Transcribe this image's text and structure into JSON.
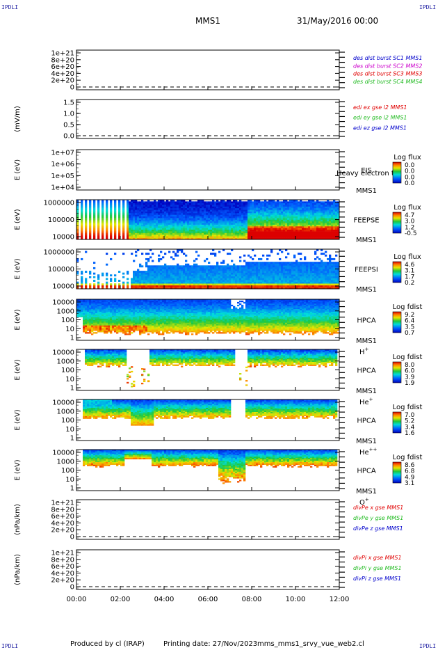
{
  "header": {
    "corner_tl": "IPDLI",
    "corner_tr": "IPDLI",
    "corner_bl": "IPDLI",
    "corner_br": "IPDLI",
    "spacecraft": "MMS1",
    "date_time": "31/May/2016 00:00"
  },
  "footer": {
    "produced_by": "Produced by cl (IRAP)",
    "printing_date": "Printing date: 27/Nov/2023",
    "script_name": "mms_mms1_srvy_vue_web2.cl"
  },
  "colors": {
    "red": "#e00000",
    "magenta": "#cc00cc",
    "green": "#22bb22",
    "blue": "#0000cc",
    "axis": "#000000"
  },
  "chart_data": [
    {
      "type": "line",
      "ylabel": "",
      "yticks": [
        "0",
        "2e+20",
        "4e+20",
        "6e+20",
        "8e+20",
        "1e+21"
      ],
      "legend": [
        {
          "name": "des dist burst SC1 MMS1",
          "color": "#0000cc"
        },
        {
          "name": "des dist burst SC2 MMS2",
          "color": "#cc00cc"
        },
        {
          "name": "des dist burst SC3 MMS3",
          "color": "#e00000"
        },
        {
          "name": "des dist burst SC4 MMS4",
          "color": "#22bb22"
        }
      ],
      "zero_line": true
    },
    {
      "type": "line",
      "ylabel": "(mV/m)",
      "yticks": [
        "0.0",
        "0.5",
        "1.0",
        "1.5"
      ],
      "legend": [
        {
          "name": "edi ex gse l2 MMS1",
          "color": "#e00000"
        },
        {
          "name": "edi ey gse l2 MMS1",
          "color": "#22bb22"
        },
        {
          "name": "edi ez gse l2 MMS1",
          "color": "#0000cc"
        }
      ],
      "zero_line": true
    },
    {
      "type": "heatmap",
      "ylabel": "E (eV)",
      "yticks": [
        "1e+04",
        "1e+05",
        "1e+06",
        "1e+07"
      ],
      "instrument": "EIS",
      "instrument_extra": "Heavy electron to",
      "spacecraft": "MMS1",
      "colorbar_title": "Log flux",
      "colorbar_ticks": [
        "0.0",
        "0.0",
        "0.0",
        "0.0"
      ],
      "spectrogram": "none"
    },
    {
      "type": "heatmap",
      "ylabel": "E (eV)",
      "yticks": [
        "10000",
        "100000",
        "1000000"
      ],
      "instrument": "FEEPSE",
      "spacecraft": "MMS1",
      "colorbar_title": "Log flux",
      "colorbar_ticks": [
        "4.7",
        "3.0",
        "1.2",
        "-0.5"
      ],
      "spectrogram": "feepse"
    },
    {
      "type": "heatmap",
      "ylabel": "E (eV)",
      "yticks": [
        "10000",
        "100000",
        "1000000"
      ],
      "instrument": "FEEPSI",
      "spacecraft": "MMS1",
      "colorbar_title": "Log flux",
      "colorbar_ticks": [
        "4.6",
        "3.1",
        "1.7",
        "0.2"
      ],
      "spectrogram": "feepsi"
    },
    {
      "type": "heatmap",
      "ylabel": "E (eV)",
      "yticks": [
        "1",
        "10",
        "100",
        "1000",
        "10000"
      ],
      "instrument": "HPCA",
      "spacecraft": "MMS1",
      "species_base": "H",
      "species_sup": "+",
      "colorbar_title": "Log fdist",
      "colorbar_ticks": [
        "9.2",
        "6.4",
        "3.5",
        "0.7"
      ],
      "spectrogram": "hplus"
    },
    {
      "type": "heatmap",
      "ylabel": "E (eV)",
      "yticks": [
        "1",
        "10",
        "100",
        "1000",
        "10000"
      ],
      "instrument": "HPCA",
      "spacecraft": "MMS1",
      "species_base": "He",
      "species_sup": "+",
      "colorbar_title": "Log fdist",
      "colorbar_ticks": [
        "8.0",
        "6.0",
        "3.9",
        "1.9"
      ],
      "spectrogram": "heplus"
    },
    {
      "type": "heatmap",
      "ylabel": "E (eV)",
      "yticks": [
        "1",
        "10",
        "100",
        "1000",
        "10000"
      ],
      "instrument": "HPCA",
      "spacecraft": "MMS1",
      "species_base": "He",
      "species_sup": "++",
      "colorbar_title": "Log fdist",
      "colorbar_ticks": [
        "7.0",
        "5.2",
        "3.4",
        "1.6"
      ],
      "spectrogram": "heplusplus"
    },
    {
      "type": "heatmap",
      "ylabel": "E (eV)",
      "yticks": [
        "1",
        "10",
        "100",
        "1000",
        "10000"
      ],
      "instrument": "HPCA",
      "spacecraft": "MMS1",
      "species_base": "O",
      "species_sup": "+",
      "colorbar_title": "Log fdist",
      "colorbar_ticks": [
        "8.6",
        "6.8",
        "4.9",
        "3.1"
      ],
      "spectrogram": "oplus"
    },
    {
      "type": "line",
      "ylabel": "(nPa/km)",
      "yticks": [
        "0",
        "2e+20",
        "4e+20",
        "6e+20",
        "8e+20",
        "1e+21"
      ],
      "legend": [
        {
          "name": "divPe x gse MMS1",
          "color": "#e00000"
        },
        {
          "name": "divPe y gse MMS1",
          "color": "#22bb22"
        },
        {
          "name": "divPe z gse MMS1",
          "color": "#0000cc"
        }
      ],
      "zero_line": true
    },
    {
      "type": "line",
      "ylabel": "(nPa/km)",
      "yticks": [
        "0",
        "2e+20",
        "4e+20",
        "6e+20",
        "8e+20",
        "1e+21"
      ],
      "legend": [
        {
          "name": "divPi x gse MMS1",
          "color": "#e00000"
        },
        {
          "name": "divPi y gse MMS1",
          "color": "#22bb22"
        },
        {
          "name": "divPi z gse MMS1",
          "color": "#0000cc"
        }
      ],
      "zero_line": true
    }
  ],
  "x_axis": {
    "ticks": [
      "00:00",
      "02:00",
      "04:00",
      "06:00",
      "08:00",
      "10:00",
      "12:00"
    ],
    "range_hours": [
      0,
      12
    ]
  }
}
